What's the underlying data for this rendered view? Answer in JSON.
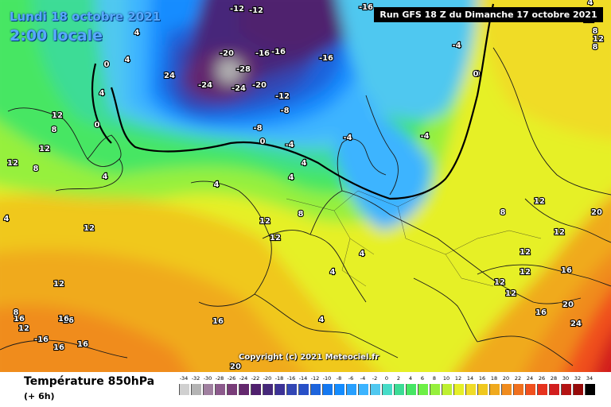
{
  "header": {
    "date_line": "Lundi 18 octobre 2021",
    "time_line": "2:00 locale",
    "run_info": "Run GFS 18 Z du Dimanche 17 octobre 2021"
  },
  "footer": {
    "title": "Température 850hPa",
    "subtitle": "(+ 6h)"
  },
  "copyright": "Copyright (c) 2021 Meteociel.fr",
  "scale": {
    "values": [
      "-34",
      "-32",
      "-30",
      "-28",
      "-26",
      "-24",
      "-22",
      "-20",
      "-18",
      "-16",
      "-14",
      "-12",
      "-10",
      "-8",
      "-6",
      "-4",
      "-2",
      "0",
      "2",
      "4",
      "6",
      "8",
      "10",
      "12",
      "14",
      "16",
      "18",
      "20",
      "22",
      "24",
      "26",
      "28",
      "30",
      "32",
      "34"
    ],
    "colors": [
      "#d0d0d0",
      "#b4b4b4",
      "#a080a0",
      "#8c5a8c",
      "#783c78",
      "#64286e",
      "#50206e",
      "#46287a",
      "#3c3296",
      "#3246b4",
      "#2850c8",
      "#1e64dc",
      "#1478f0",
      "#148cff",
      "#28a0ff",
      "#3cb4ff",
      "#50c8f0",
      "#46dcc8",
      "#3cdc96",
      "#46e664",
      "#6ef046",
      "#96f03c",
      "#bef032",
      "#e6f028",
      "#f0dc28",
      "#f0c81e",
      "#f0aa1e",
      "#f08c1e",
      "#f0701e",
      "#f0501e",
      "#e6321e",
      "#d21e1e",
      "#b41414",
      "#960a0a",
      "#000000"
    ]
  },
  "map": {
    "iso_labels": [
      {
        "text": "-12"
      },
      {
        "text": "-12"
      },
      {
        "text": "-16"
      },
      {
        "text": "4"
      },
      {
        "text": "0"
      },
      {
        "text": "4"
      },
      {
        "text": "-20"
      },
      {
        "text": "-16"
      },
      {
        "text": "-16"
      },
      {
        "text": "-16"
      },
      {
        "text": "-28"
      },
      {
        "text": "-24"
      },
      {
        "text": "24"
      },
      {
        "text": "-24"
      },
      {
        "text": "-20"
      },
      {
        "text": "-12"
      },
      {
        "text": "-8"
      },
      {
        "text": "-8"
      },
      {
        "text": "0"
      },
      {
        "text": "-4"
      },
      {
        "text": "-4"
      },
      {
        "text": "-4"
      },
      {
        "text": "-4"
      },
      {
        "text": "0"
      },
      {
        "text": "4"
      },
      {
        "text": "0"
      },
      {
        "text": "4"
      },
      {
        "text": "4"
      },
      {
        "text": "4"
      },
      {
        "text": "4"
      },
      {
        "text": "12"
      },
      {
        "text": "8"
      },
      {
        "text": "12"
      },
      {
        "text": "12"
      },
      {
        "text": "12"
      },
      {
        "text": "8"
      },
      {
        "text": "4"
      },
      {
        "text": "4"
      },
      {
        "text": "12"
      },
      {
        "text": "12"
      },
      {
        "text": "8"
      },
      {
        "text": "4"
      },
      {
        "text": "12"
      },
      {
        "text": "8"
      },
      {
        "text": "4"
      },
      {
        "text": "12"
      },
      {
        "text": "16"
      },
      {
        "text": "16"
      },
      {
        "text": "16"
      },
      {
        "text": "-16"
      },
      {
        "text": "16"
      },
      {
        "text": "16"
      },
      {
        "text": "16"
      },
      {
        "text": "20"
      },
      {
        "text": "12"
      },
      {
        "text": "8"
      },
      {
        "text": "12"
      },
      {
        "text": "12"
      },
      {
        "text": "12"
      },
      {
        "text": "12"
      },
      {
        "text": "16"
      },
      {
        "text": "12"
      },
      {
        "text": "20"
      },
      {
        "text": "24"
      },
      {
        "text": "20"
      },
      {
        "text": "16"
      },
      {
        "text": "12"
      },
      {
        "text": "8"
      },
      {
        "text": "12"
      },
      {
        "text": "8"
      },
      {
        "text": "4"
      },
      {
        "text": "0"
      }
    ]
  }
}
